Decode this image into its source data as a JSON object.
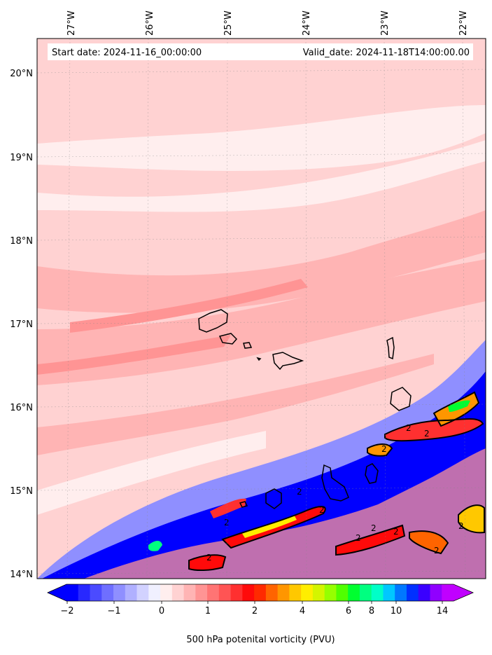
{
  "map": {
    "start_date": "Start date: 2024-11-16_00:00:00",
    "valid_date": "Valid_date: 2024-11-18T14:00:00.00",
    "lon_labels": [
      "27°W",
      "26°W",
      "25°W",
      "24°W",
      "23°W",
      "22°W"
    ],
    "lat_labels": [
      "20°N",
      "19°N",
      "18°N",
      "17°N",
      "16°N",
      "15°N",
      "14°N"
    ],
    "contour_labels": [
      "2",
      "2",
      "2",
      "2",
      "2",
      "2",
      "2",
      "2",
      "2",
      "2",
      "2",
      "2"
    ]
  },
  "colorbar": {
    "title": "500 hPa potenital vorticity (PVU)",
    "tick_labels": [
      "−2",
      "−1",
      "0",
      "1",
      "2",
      "4",
      "6",
      "8",
      "10",
      "14"
    ],
    "colors": [
      "#0000ff",
      "#2828ff",
      "#4b4bff",
      "#6f6fff",
      "#8f8fff",
      "#b0b0ff",
      "#d2d2ff",
      "#f0f0ff",
      "#ffeeee",
      "#ffd2d2",
      "#ffb4b4",
      "#ff9494",
      "#ff7474",
      "#ff5454",
      "#ff3030",
      "#ff0a0a",
      "#ff2a00",
      "#ff6400",
      "#ff9600",
      "#ffc800",
      "#ffee00",
      "#d4f500",
      "#96ff00",
      "#50ff00",
      "#00ff30",
      "#00ff80",
      "#00ffc8",
      "#00c8ff",
      "#0078ff",
      "#0030ff",
      "#3a00ff",
      "#9000ff",
      "#c000ff"
    ]
  }
}
